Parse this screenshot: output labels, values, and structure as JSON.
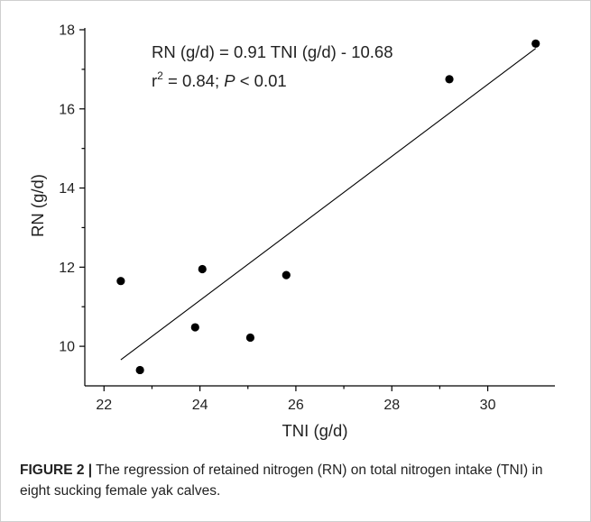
{
  "chart_data": {
    "type": "scatter",
    "xlabel": "TNI (g/d)",
    "ylabel": "RN (g/d)",
    "xlim": [
      21.6,
      31.4
    ],
    "ylim": [
      9.0,
      18.0
    ],
    "xticks": [
      22,
      24,
      26,
      28,
      30
    ],
    "yticks": [
      10,
      12,
      14,
      16,
      18
    ],
    "xtick_labels": [
      "22",
      "24",
      "26",
      "28",
      "30"
    ],
    "ytick_labels": [
      "10",
      "12",
      "14",
      "16",
      "18"
    ],
    "grid": false,
    "legend": "none",
    "series": [
      {
        "points": [
          {
            "x": 22.35,
            "y": 11.65
          },
          {
            "x": 22.75,
            "y": 9.4
          },
          {
            "x": 23.9,
            "y": 10.48
          },
          {
            "x": 24.05,
            "y": 11.95
          },
          {
            "x": 25.05,
            "y": 10.22
          },
          {
            "x": 25.8,
            "y": 11.8
          },
          {
            "x": 29.2,
            "y": 16.75
          },
          {
            "x": 31.0,
            "y": 17.65
          }
        ]
      }
    ],
    "regression": {
      "slope": 0.91,
      "intercept": -10.68,
      "x_range": [
        22.35,
        31.0
      ]
    },
    "annotation": {
      "equation": "RN (g/d) = 0.91 TNI (g/d) - 10.68",
      "r_prefix": "r",
      "r_superscript": "2",
      "r_rest": " = 0.84; ",
      "p_italic": "P",
      "p_rest": " < 0.01"
    },
    "colors": {
      "marker": "#000000",
      "line": "#000000",
      "axis": "#000000"
    }
  },
  "caption": {
    "label": "FIGURE 2 |",
    "text": " The regression of retained nitrogen (RN) on total nitrogen intake (TNI) in eight sucking female yak calves."
  }
}
